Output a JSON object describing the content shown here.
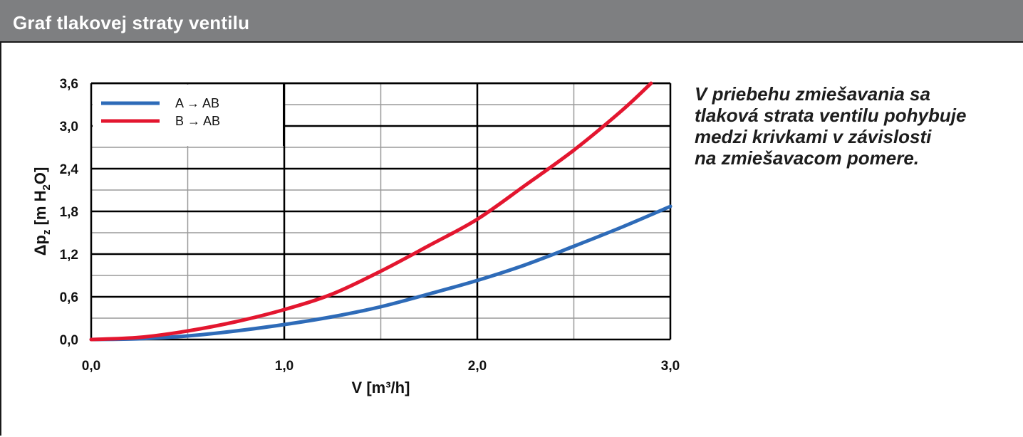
{
  "header": {
    "title": "Graf tlakovej straty ventilu"
  },
  "note": {
    "lines": [
      "V priebehu zmiešavania sa",
      "tlaková strata ventilu pohybuje",
      "medzi krivkami v závislosti",
      "na zmiešavacom pomere."
    ]
  },
  "colors": {
    "series_a": "#2e6bb8",
    "series_b": "#e3162f",
    "header_bg": "#7e7f81"
  },
  "chart_data": {
    "type": "line",
    "title": "",
    "xlabel": "V [m³/h]",
    "ylabel_main": "Δp",
    "ylabel_sub": "z",
    "ylabel_rest": " [m H",
    "ylabel_sub2": "2",
    "ylabel_end": "O]",
    "xlim": [
      0,
      3.0
    ],
    "ylim": [
      0,
      3.6
    ],
    "x_ticks": [
      "0,0",
      "1,0",
      "2,0",
      "3,0"
    ],
    "y_ticks": [
      "0,0",
      "0,6",
      "1,2",
      "1,8",
      "2,4",
      "3,0",
      "3,6"
    ],
    "grid": true,
    "legend_position": "top-left",
    "series": [
      {
        "name": "A → AB",
        "color": "#2e6bb8",
        "x": [
          0,
          0.25,
          0.5,
          0.75,
          1.0,
          1.25,
          1.5,
          1.75,
          2.0,
          2.25,
          2.5,
          2.75,
          3.0
        ],
        "y": [
          0,
          0.01,
          0.05,
          0.12,
          0.21,
          0.32,
          0.46,
          0.64,
          0.83,
          1.05,
          1.31,
          1.58,
          1.87
        ]
      },
      {
        "name": "B → AB",
        "color": "#e3162f",
        "x": [
          0,
          0.25,
          0.5,
          0.75,
          1.0,
          1.25,
          1.5,
          1.75,
          2.0,
          2.25,
          2.5,
          2.75,
          2.9
        ],
        "y": [
          0,
          0.03,
          0.12,
          0.25,
          0.42,
          0.64,
          0.96,
          1.32,
          1.69,
          2.17,
          2.66,
          3.22,
          3.6
        ]
      }
    ]
  }
}
